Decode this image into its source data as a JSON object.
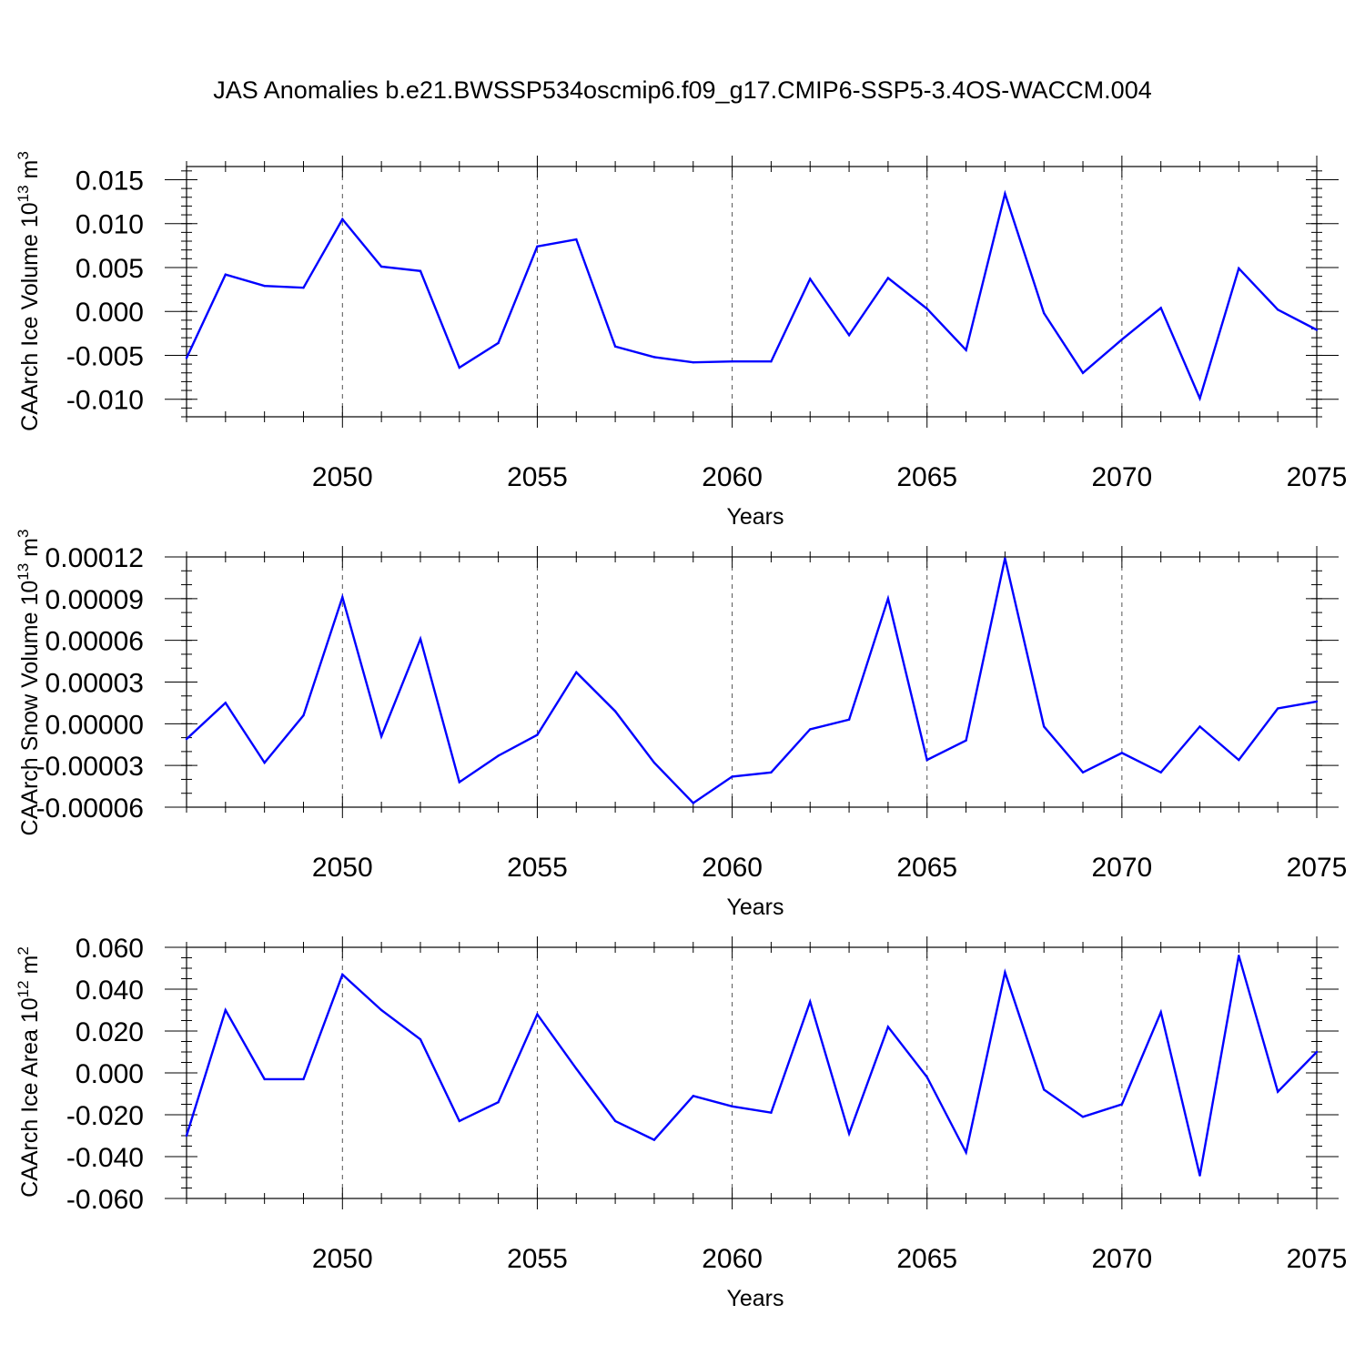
{
  "title": "JAS Anomalies b.e21.BWSSP534oscmip6.f09_g17.CMIP6-SSP5-3.4OS-WACCM.004",
  "colors": {
    "line": "#0000ff",
    "axis": "#000000",
    "grid": "#555555"
  },
  "chart_data": [
    {
      "type": "line",
      "title": "",
      "xlabel": "Years",
      "ylabel_main": "CAArch Ice Volume 10",
      "ylabel_sup": "13",
      "ylabel_unit": " m",
      "ylabel_unit_sup": "3",
      "xlim": [
        2046,
        2075
      ],
      "ylim": [
        -0.012,
        0.016
      ],
      "xticks": [
        "2050",
        "2055",
        "2060",
        "2065",
        "2070",
        "2075"
      ],
      "yticks": [
        "0.015",
        "0.010",
        "0.005",
        "0.000",
        "-0.005",
        "-0.010"
      ],
      "grid": "vertical dashed at labeled x ticks",
      "x": [
        2046,
        2047,
        2048,
        2049,
        2050,
        2051,
        2052,
        2053,
        2054,
        2055,
        2056,
        2057,
        2058,
        2059,
        2060,
        2061,
        2062,
        2063,
        2064,
        2065,
        2066,
        2067,
        2068,
        2069,
        2070,
        2071,
        2072,
        2073,
        2074,
        2075
      ],
      "series": [
        {
          "values": [
            -0.0053,
            0.0042,
            0.0029,
            0.0027,
            0.0105,
            0.0051,
            0.0046,
            -0.0064,
            -0.0036,
            0.0074,
            0.0082,
            -0.004,
            -0.0052,
            -0.0058,
            -0.0057,
            -0.0057,
            0.0037,
            -0.0027,
            0.0038,
            0.0003,
            -0.0044,
            0.0134,
            -0.0002,
            -0.007,
            -0.0032,
            0.0004,
            -0.0099,
            0.0049,
            0.0002,
            -0.0021
          ]
        }
      ]
    },
    {
      "type": "line",
      "title": "",
      "xlabel": "Years",
      "ylabel_main": "CAArch Snow Volume 10",
      "ylabel_sup": "13",
      "ylabel_unit": " m",
      "ylabel_unit_sup": "3",
      "xlim": [
        2046,
        2075
      ],
      "ylim": [
        -6e-05,
        0.00012
      ],
      "xticks": [
        "2050",
        "2055",
        "2060",
        "2065",
        "2070",
        "2075"
      ],
      "yticks": [
        "0.00012",
        "0.00009",
        "0.00006",
        "0.00003",
        "0.00000",
        "-0.00003",
        "-0.00006"
      ],
      "grid": "vertical dashed at labeled x ticks",
      "x": [
        2046,
        2047,
        2048,
        2049,
        2050,
        2051,
        2052,
        2053,
        2054,
        2055,
        2056,
        2057,
        2058,
        2059,
        2060,
        2061,
        2062,
        2063,
        2064,
        2065,
        2066,
        2067,
        2068,
        2069,
        2070,
        2071,
        2072,
        2073,
        2074,
        2075
      ],
      "series": [
        {
          "values": [
            -1.1e-05,
            1.5e-05,
            -2.8e-05,
            6e-06,
            9.1e-05,
            -9e-06,
            6.1e-05,
            -4.2e-05,
            -2.3e-05,
            -8e-06,
            3.7e-05,
            9e-06,
            -2.8e-05,
            -5.7e-05,
            -3.8e-05,
            -3.5e-05,
            -4e-06,
            3e-06,
            9e-05,
            -2.6e-05,
            -1.2e-05,
            0.000119,
            -2e-06,
            -3.5e-05,
            -2.1e-05,
            -3.5e-05,
            -2e-06,
            -2.6e-05,
            1.1e-05,
            1.6e-05
          ]
        }
      ]
    },
    {
      "type": "line",
      "title": "",
      "xlabel": "Years",
      "ylabel_main": "CAArch Ice Area 10",
      "ylabel_sup": "12",
      "ylabel_unit": " m",
      "ylabel_unit_sup": "2",
      "xlim": [
        2046,
        2075
      ],
      "ylim": [
        -0.06,
        0.06
      ],
      "xticks": [
        "2050",
        "2055",
        "2060",
        "2065",
        "2070",
        "2075"
      ],
      "yticks": [
        "0.060",
        "0.040",
        "0.020",
        "0.000",
        "-0.020",
        "-0.040",
        "-0.060"
      ],
      "grid": "vertical dashed at labeled x ticks",
      "x": [
        2046,
        2047,
        2048,
        2049,
        2050,
        2051,
        2052,
        2053,
        2054,
        2055,
        2056,
        2057,
        2058,
        2059,
        2060,
        2061,
        2062,
        2063,
        2064,
        2065,
        2066,
        2067,
        2068,
        2069,
        2070,
        2071,
        2072,
        2073,
        2074,
        2075
      ],
      "series": [
        {
          "values": [
            -0.03,
            0.03,
            -0.003,
            -0.003,
            0.047,
            0.03,
            0.016,
            -0.023,
            -0.014,
            0.028,
            0.002,
            -0.023,
            -0.032,
            -0.011,
            -0.016,
            -0.019,
            0.034,
            -0.029,
            0.022,
            -0.002,
            -0.038,
            0.048,
            -0.008,
            -0.021,
            -0.015,
            0.029,
            -0.049,
            0.056,
            -0.009,
            0.01
          ]
        }
      ]
    }
  ]
}
